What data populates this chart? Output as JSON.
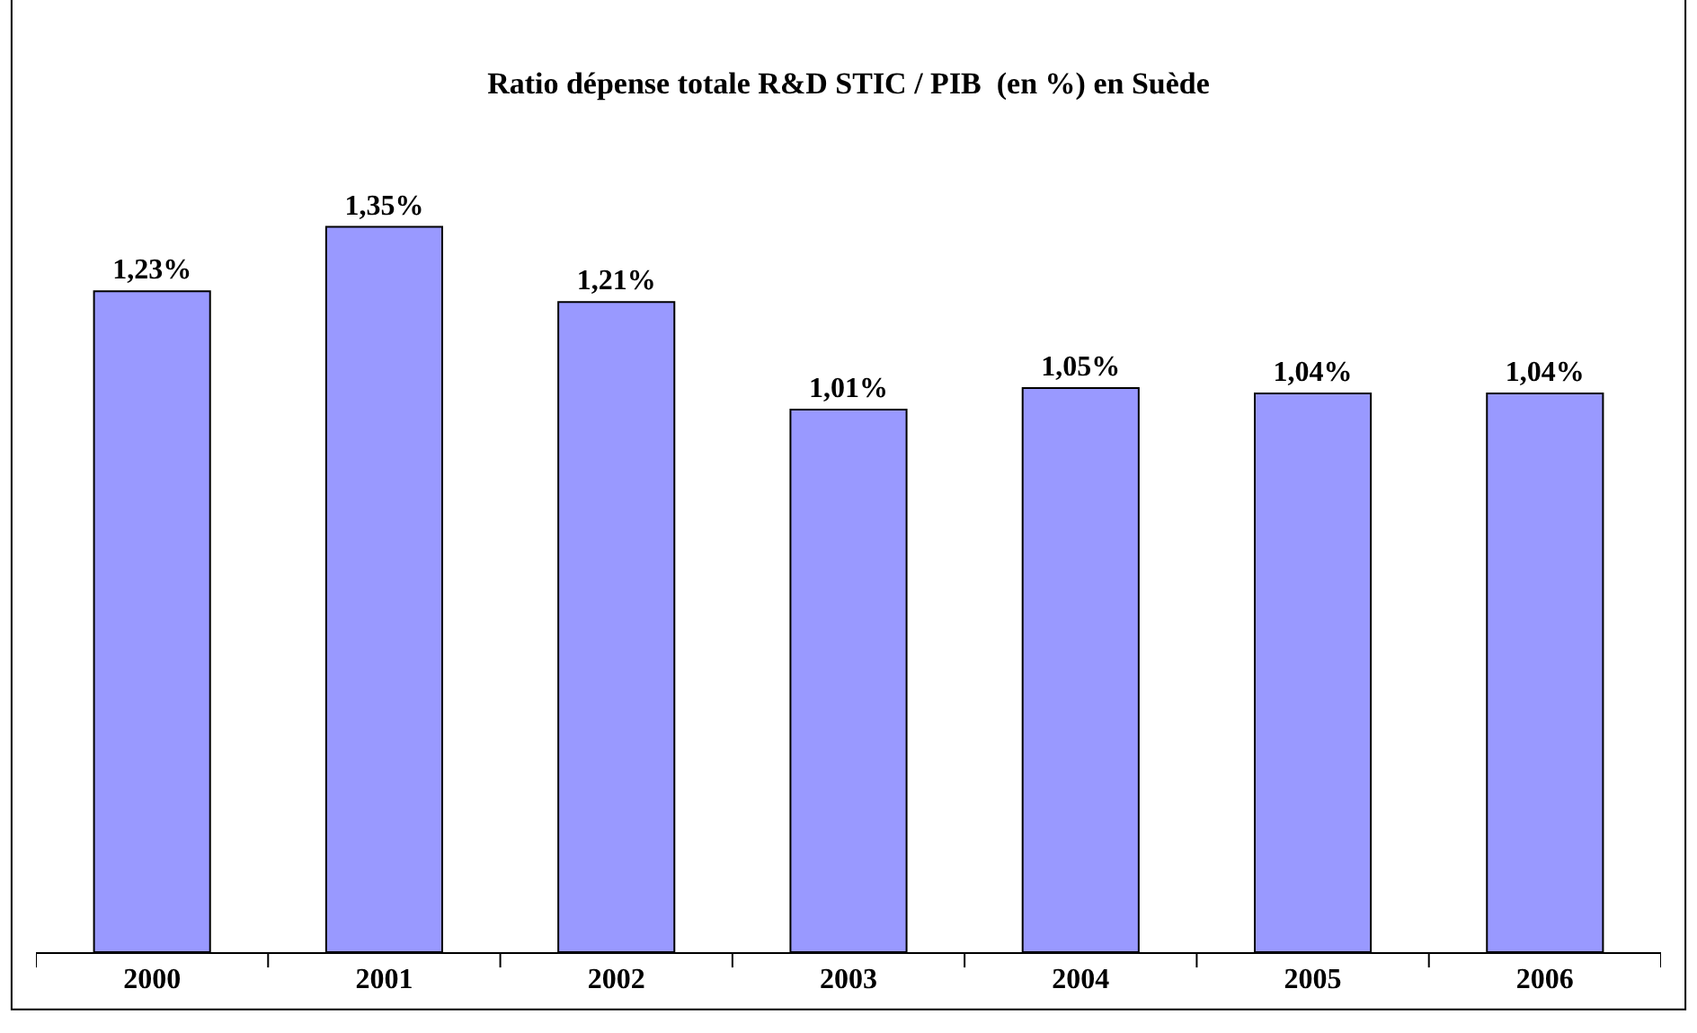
{
  "chart_data": {
    "type": "bar",
    "title": "Ratio dépense totale R&D STIC / PIB  (en %) en Suède",
    "categories": [
      "2000",
      "2001",
      "2002",
      "2003",
      "2004",
      "2005",
      "2006"
    ],
    "values": [
      1.23,
      1.35,
      1.21,
      1.01,
      1.05,
      1.04,
      1.04
    ],
    "value_labels": [
      "1,23%",
      "1,35%",
      "1,21%",
      "1,01%",
      "1,05%",
      "1,04%",
      "1,04%"
    ],
    "color": "#9999ff"
  }
}
